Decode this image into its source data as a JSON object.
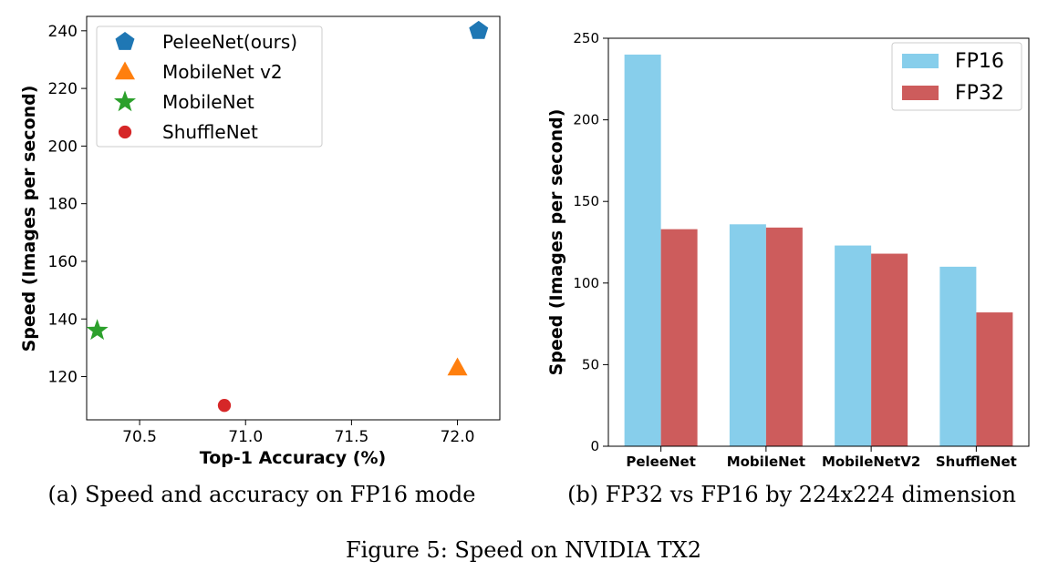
{
  "figure": {
    "caption": "Figure 5: Speed on NVIDIA TX2"
  },
  "chart_data": [
    {
      "type": "scatter",
      "caption": "(a) Speed and accuracy on FP16 mode",
      "xlabel": "Top-1 Accuracy (%)",
      "ylabel": "Speed (Images per second)",
      "xlim": [
        70.25,
        72.2
      ],
      "ylim": [
        105,
        245
      ],
      "xticks": [
        "70.5",
        "71.0",
        "71.5",
        "72.0"
      ],
      "yticks": [
        "120",
        "140",
        "160",
        "180",
        "200",
        "220",
        "240"
      ],
      "legend_position": "top-left",
      "grid": false,
      "series": [
        {
          "name": "PeleeNet(ours)",
          "x": 72.1,
          "y": 240,
          "marker": "pentagon",
          "color": "#1f77b4"
        },
        {
          "name": "MobileNet v2",
          "x": 72.0,
          "y": 123,
          "marker": "triangle",
          "color": "#ff7f0e"
        },
        {
          "name": "MobileNet",
          "x": 70.3,
          "y": 136,
          "marker": "star",
          "color": "#2ca02c"
        },
        {
          "name": "ShuffleNet",
          "x": 70.9,
          "y": 110,
          "marker": "circle",
          "color": "#d62728"
        }
      ]
    },
    {
      "type": "bar",
      "caption": "(b) FP32 vs FP16 by 224x224 dimension",
      "xlabel": "",
      "ylabel": "Speed (Images per second)",
      "ylim": [
        0,
        250
      ],
      "yticks": [
        "0",
        "50",
        "100",
        "150",
        "200",
        "250"
      ],
      "categories": [
        "PeleeNet",
        "MobileNet",
        "MobileNetV2",
        "ShuffleNet"
      ],
      "legend_position": "top-right",
      "grid": false,
      "series": [
        {
          "name": "FP16",
          "values": [
            240,
            136,
            123,
            110
          ],
          "color": "#87ceeb"
        },
        {
          "name": "FP32",
          "values": [
            133,
            134,
            118,
            82
          ],
          "color": "#cd5c5c"
        }
      ]
    }
  ]
}
